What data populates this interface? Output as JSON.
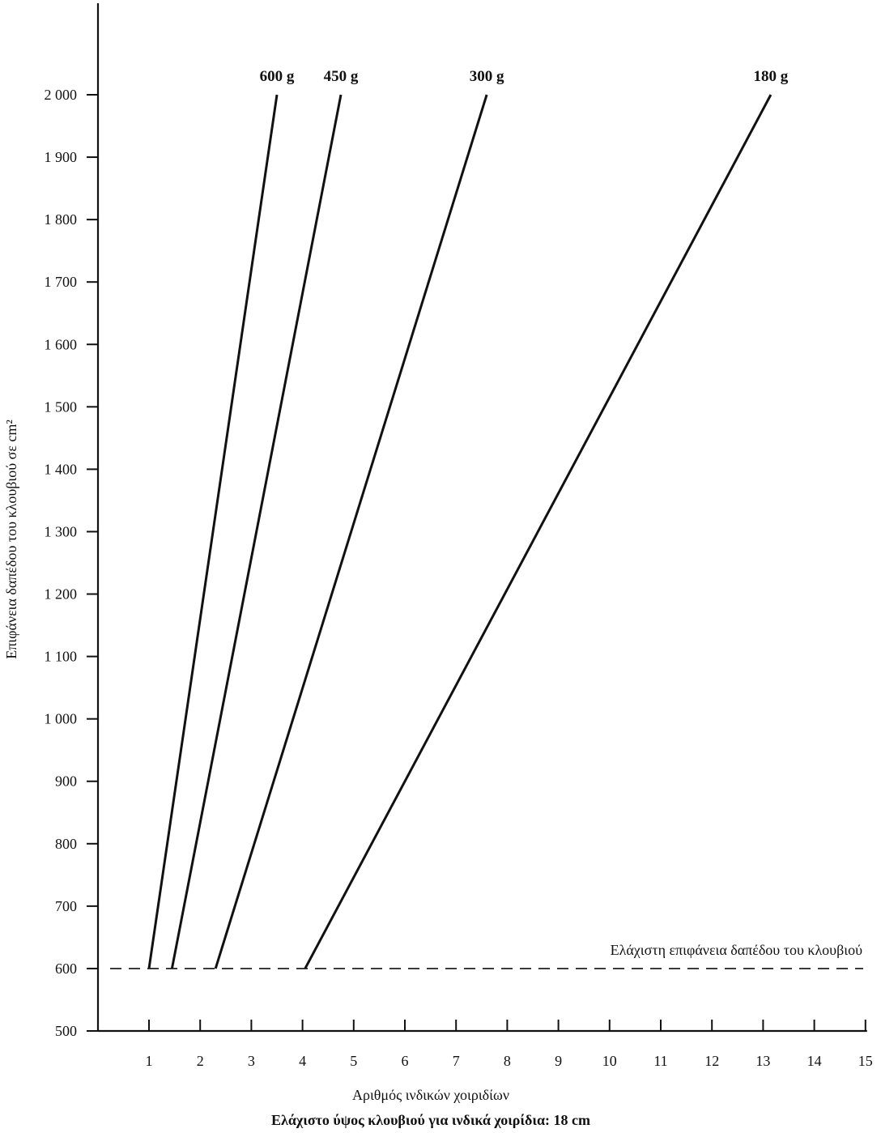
{
  "chart_data": {
    "type": "line",
    "xlabel": "Αριθμός ινδικών χοιριδίων",
    "ylabel": "Επιφάνεια δαπέδου του κλουβιού σε cm²",
    "subtitle": "Ελάχιστο ύψος κλουβιού για ινδικά χοιρίδια: 18 cm",
    "xlim": [
      0,
      15
    ],
    "ylim": [
      500,
      2050
    ],
    "x_ticks": [
      1,
      2,
      3,
      4,
      5,
      6,
      7,
      8,
      9,
      10,
      11,
      12,
      13,
      14,
      15
    ],
    "y_ticks": [
      500,
      600,
      700,
      800,
      900,
      1000,
      1100,
      1200,
      1300,
      1400,
      1500,
      1600,
      1700,
      1800,
      1900,
      2000
    ],
    "y_tick_labels": [
      "500",
      "600",
      "700",
      "800",
      "900",
      "1 000",
      "1 100",
      "1 200",
      "1 300",
      "1 400",
      "1 500",
      "1 600",
      "1 700",
      "1 800",
      "1 900",
      "2 000"
    ],
    "grid": false,
    "legend": "labels at line ends",
    "series": [
      {
        "name": "600 g",
        "points": [
          [
            1.0,
            600
          ],
          [
            3.5,
            2000
          ]
        ]
      },
      {
        "name": "450 g",
        "points": [
          [
            1.45,
            600
          ],
          [
            4.75,
            2000
          ]
        ]
      },
      {
        "name": "300 g",
        "points": [
          [
            2.3,
            600
          ],
          [
            7.6,
            2000
          ]
        ]
      },
      {
        "name": "180 g",
        "points": [
          [
            4.05,
            600
          ],
          [
            13.15,
            2000
          ]
        ]
      }
    ],
    "reference_line": {
      "y": 600,
      "style": "dashed",
      "label": "Ελάχιστη επιφάνεια δαπέδου του κλουβιού"
    }
  }
}
